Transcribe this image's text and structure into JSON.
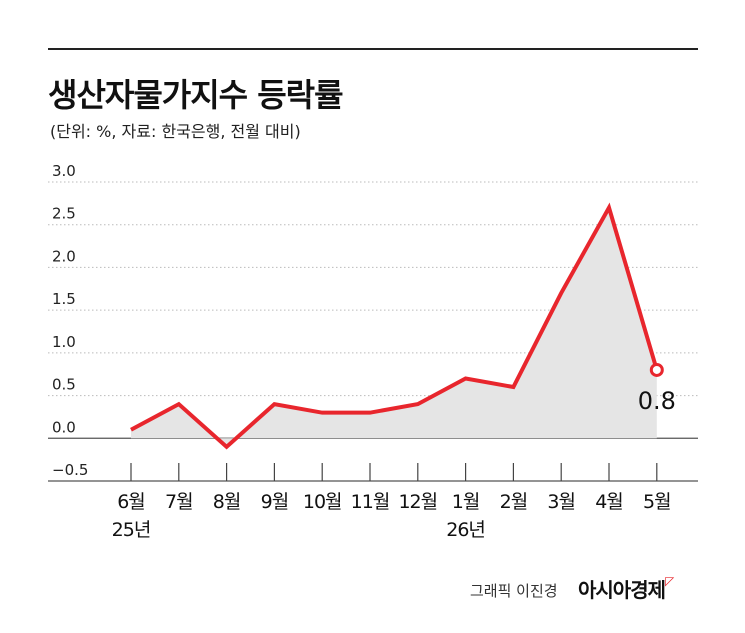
{
  "header": {
    "title": "생산자물가지수 등락률",
    "subtitle": "(단위: %, 자료: 한국은행, 전월 대비)"
  },
  "footer": {
    "credit": "그래픽 이진경",
    "brand": "아시아경제"
  },
  "chart_data": {
    "type": "area",
    "title": "생산자물가지수 등락률",
    "subtitle": "(단위: %, 자료: 한국은행, 전월 대비)",
    "categories": [
      "6월",
      "7월",
      "8월",
      "9월",
      "10월",
      "11월",
      "12월",
      "1월",
      "2월",
      "3월",
      "4월",
      "5월"
    ],
    "year_labels": [
      {
        "index": 0,
        "label": "25년"
      },
      {
        "index": 7,
        "label": "26년"
      }
    ],
    "values": [
      0.1,
      0.4,
      -0.1,
      0.4,
      0.3,
      0.3,
      0.4,
      0.7,
      0.6,
      1.7,
      2.7,
      0.8
    ],
    "yticks": [
      -0.5,
      0.0,
      0.5,
      1.0,
      1.5,
      2.0,
      2.5,
      3.0
    ],
    "ytick_labels": [
      "−0.5",
      "0.0",
      "0.5",
      "1.0",
      "1.5",
      "2.0",
      "2.5",
      "3.0"
    ],
    "ylim": [
      -0.5,
      3.0
    ],
    "highlight": {
      "index": 11,
      "label": "0.8"
    },
    "grid": true,
    "line_color": "#e8262d",
    "fill_color": "#e5e5e5"
  }
}
